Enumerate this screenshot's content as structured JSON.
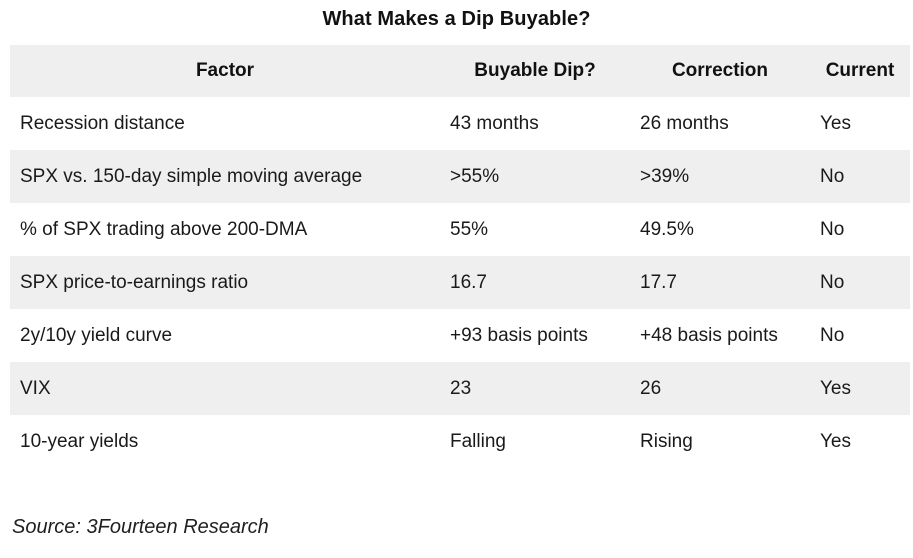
{
  "title": "What Makes a Dip Buyable?",
  "table": {
    "columns": [
      "Factor",
      "Buyable Dip?",
      "Correction",
      "Current"
    ],
    "rows": [
      [
        "Recession distance",
        "43 months",
        "26 months",
        "Yes"
      ],
      [
        "SPX vs. 150-day simple moving average",
        ">55%",
        ">39%",
        "No"
      ],
      [
        "% of SPX trading above 200-DMA",
        "55%",
        "49.5%",
        "No"
      ],
      [
        "SPX price-to-earnings ratio",
        "16.7",
        "17.7",
        "No"
      ],
      [
        "2y/10y yield curve",
        "+93 basis points",
        "+48 basis points",
        "No"
      ],
      [
        "VIX",
        "23",
        "26",
        "Yes"
      ],
      [
        "10-year yields",
        "Falling",
        "Rising",
        "Yes"
      ]
    ]
  },
  "source": "Source: 3Fourteen Research",
  "colors": {
    "row_shade": "#efefef",
    "background": "#ffffff",
    "text": "#1a1a1a"
  },
  "chart_data": {
    "type": "table",
    "title": "What Makes a Dip Buyable?",
    "columns": [
      "Factor",
      "Buyable Dip?",
      "Correction",
      "Current"
    ],
    "rows": [
      {
        "factor": "Recession distance",
        "buyable_dip": "43 months",
        "correction": "26 months",
        "current": "Yes"
      },
      {
        "factor": "SPX vs. 150-day simple moving average",
        "buyable_dip": ">55%",
        "correction": ">39%",
        "current": "No"
      },
      {
        "factor": "% of SPX trading above 200-DMA",
        "buyable_dip": "55%",
        "correction": "49.5%",
        "current": "No"
      },
      {
        "factor": "SPX price-to-earnings ratio",
        "buyable_dip": "16.7",
        "correction": "17.7",
        "current": "No"
      },
      {
        "factor": "2y/10y yield curve",
        "buyable_dip": "+93 basis points",
        "correction": "+48 basis points",
        "current": "No"
      },
      {
        "factor": "VIX",
        "buyable_dip": "23",
        "correction": "26",
        "current": "Yes"
      },
      {
        "factor": "10-year yields",
        "buyable_dip": "Falling",
        "correction": "Rising",
        "current": "Yes"
      }
    ],
    "source": "Source: 3Fourteen Research",
    "layout": {
      "row_banding": "alternating white / light gray starting white after header",
      "header_background": "#efefef",
      "gridlines": false,
      "header_alignment": "center",
      "cell_alignment": "left"
    }
  }
}
